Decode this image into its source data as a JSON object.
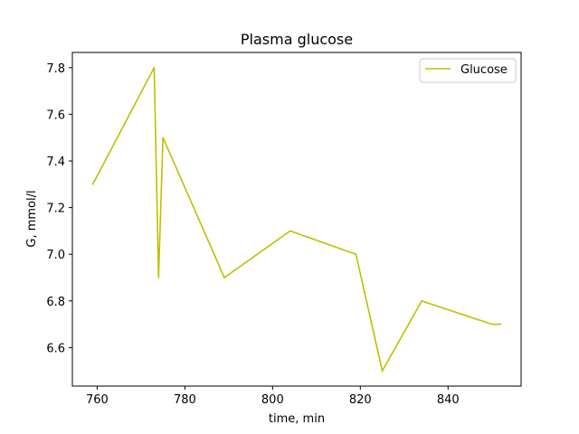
{
  "chart_data": {
    "type": "line",
    "title": "Plasma glucose",
    "xlabel": "time, min",
    "ylabel": "G, mmol/l",
    "xlim": [
      754.35,
      856.65
    ],
    "ylim": [
      6.435,
      7.865
    ],
    "xticks": [
      760,
      780,
      800,
      820,
      840
    ],
    "xtick_labels": [
      "760",
      "780",
      "800",
      "820",
      "840"
    ],
    "yticks": [
      6.6,
      6.8,
      7.0,
      7.2,
      7.4,
      7.6,
      7.8
    ],
    "ytick_labels": [
      "6.6",
      "6.8",
      "7.0",
      "7.2",
      "7.4",
      "7.6",
      "7.8"
    ],
    "grid": false,
    "legend_position": "top-right",
    "series": [
      {
        "name": "Glucose",
        "color": "#bfbf00",
        "x": [
          759,
          773,
          774,
          775,
          789,
          804,
          819,
          825,
          834,
          850,
          852
        ],
        "y": [
          7.3,
          7.8,
          6.9,
          7.5,
          6.9,
          7.1,
          7.0,
          6.5,
          6.8,
          6.7,
          6.7
        ]
      }
    ]
  }
}
